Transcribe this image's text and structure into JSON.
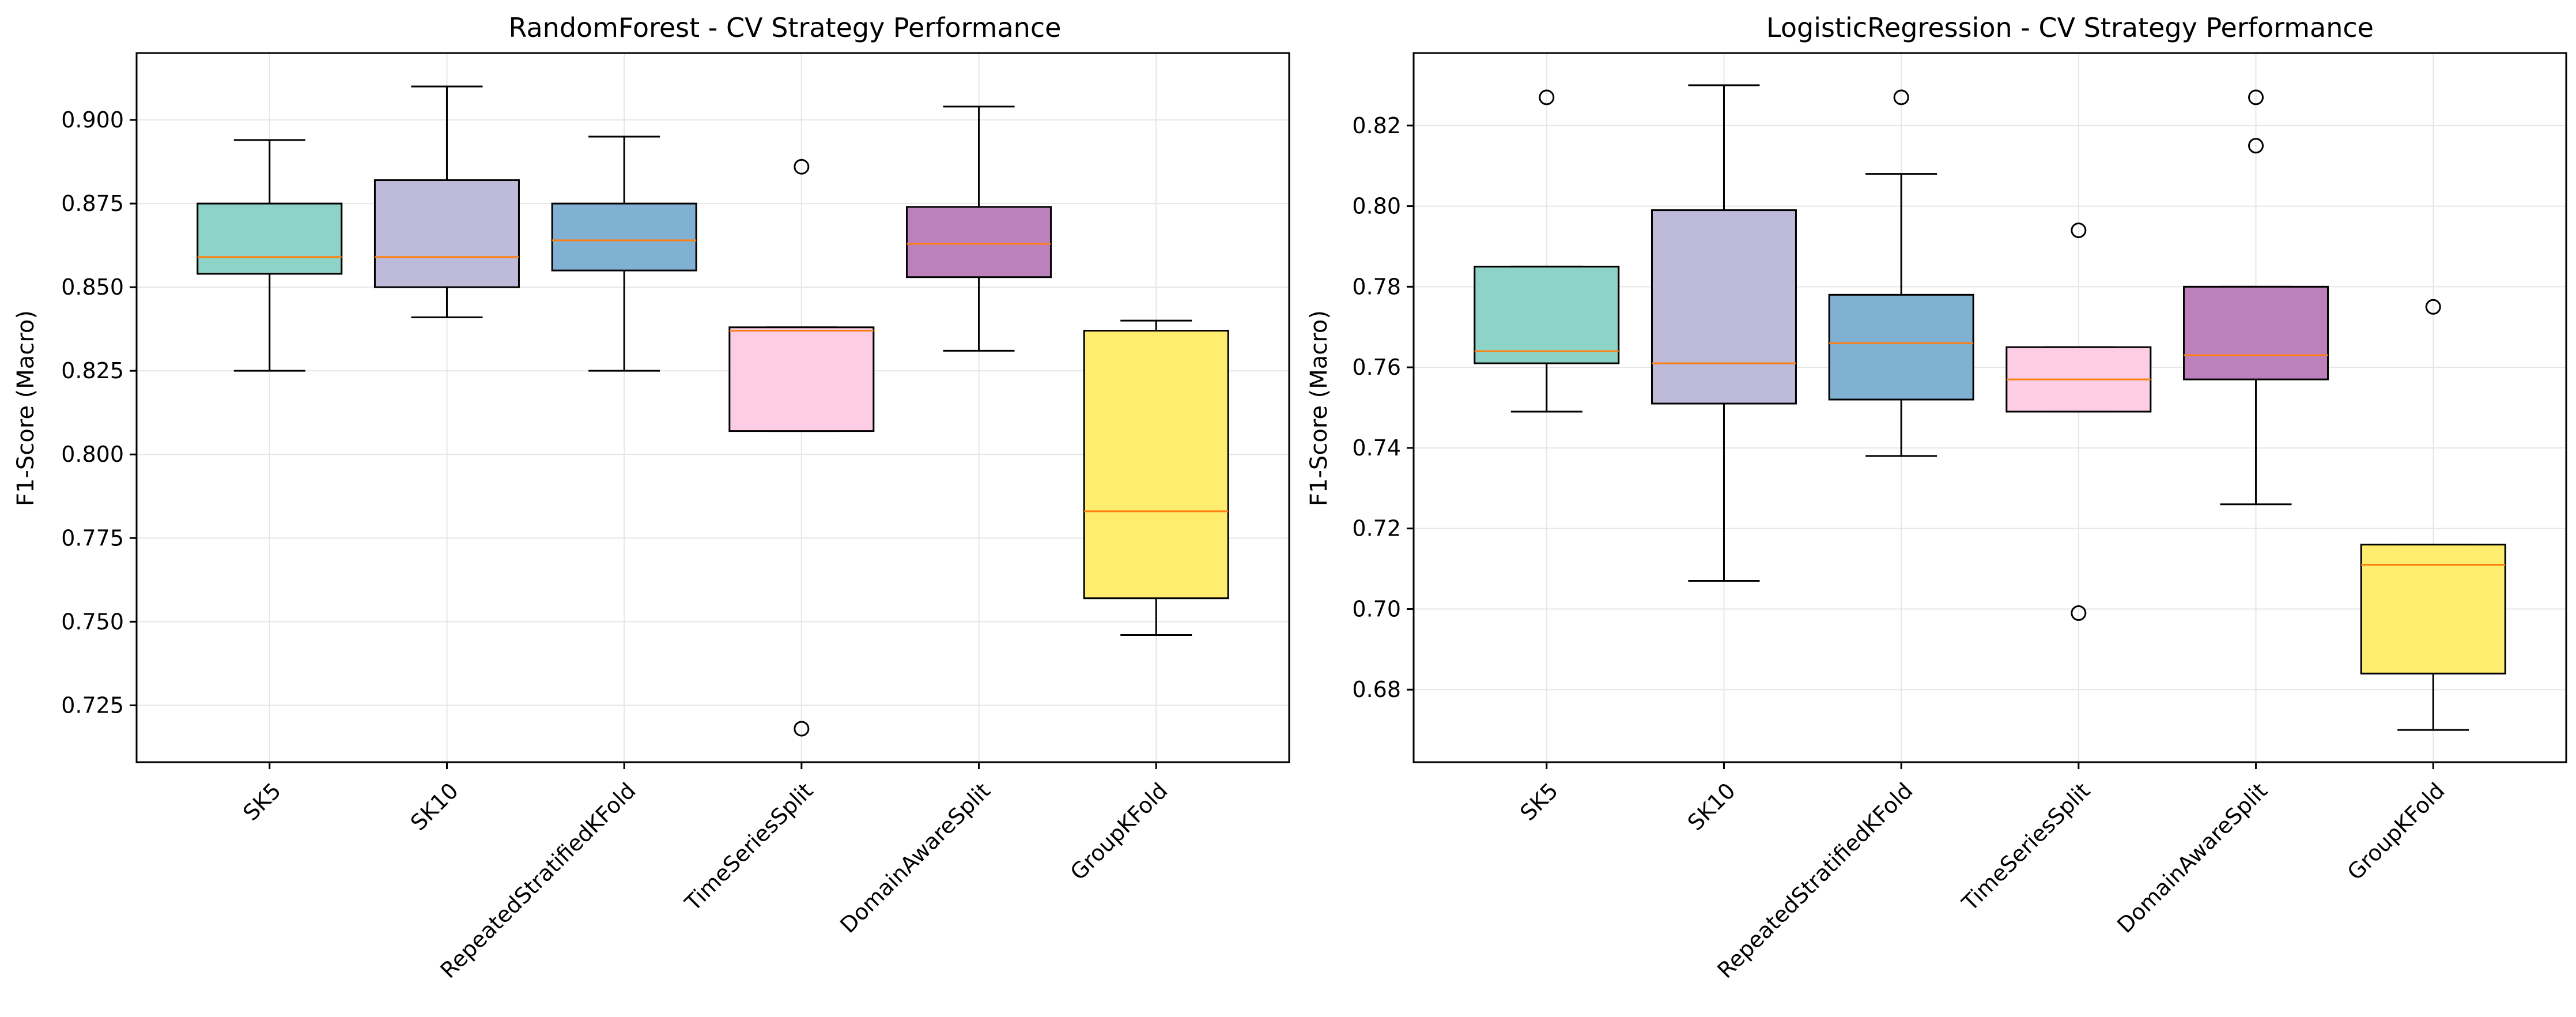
{
  "chart_data": [
    {
      "type": "box",
      "title": "RandomForest - CV Strategy Performance",
      "xlabel": "",
      "ylabel": "F1-Score (Macro)",
      "ylim": [
        0.708,
        0.92
      ],
      "yticks": [
        "0.725",
        "0.750",
        "0.775",
        "0.800",
        "0.825",
        "0.850",
        "0.875",
        "0.900"
      ],
      "grid": true,
      "categories": [
        "SK5",
        "SK10",
        "RepeatedStratifiedKFold",
        "TimeSeriesSplit",
        "DomainAwareSplit",
        "GroupKFold"
      ],
      "boxes": [
        {
          "category": "SK5",
          "whisker_low": 0.825,
          "q1": 0.854,
          "median": 0.859,
          "q3": 0.875,
          "whisker_high": 0.894,
          "outliers": [],
          "color": "#8dd3c7"
        },
        {
          "category": "SK10",
          "whisker_low": 0.841,
          "q1": 0.85,
          "median": 0.859,
          "q3": 0.882,
          "whisker_high": 0.91,
          "outliers": [],
          "color": "#bebada"
        },
        {
          "category": "RepeatedStratifiedKFold",
          "whisker_low": 0.825,
          "q1": 0.855,
          "median": 0.864,
          "q3": 0.875,
          "whisker_high": 0.895,
          "outliers": [],
          "color": "#80b1d3"
        },
        {
          "category": "TimeSeriesSplit",
          "whisker_low": 0.807,
          "q1": 0.807,
          "median": 0.837,
          "q3": 0.838,
          "whisker_high": 0.838,
          "outliers": [
            0.886,
            0.718
          ],
          "color": "#fccde5"
        },
        {
          "category": "DomainAwareSplit",
          "whisker_low": 0.831,
          "q1": 0.853,
          "median": 0.863,
          "q3": 0.874,
          "whisker_high": 0.904,
          "outliers": [],
          "color": "#bc80bd"
        },
        {
          "category": "GroupKFold",
          "whisker_low": 0.746,
          "q1": 0.757,
          "median": 0.783,
          "q3": 0.837,
          "whisker_high": 0.84,
          "outliers": [],
          "color": "#ffed6f"
        }
      ]
    },
    {
      "type": "box",
      "title": "LogisticRegression - CV Strategy Performance",
      "xlabel": "",
      "ylabel": "F1-Score (Macro)",
      "ylim": [
        0.662,
        0.838
      ],
      "yticks": [
        "0.68",
        "0.70",
        "0.72",
        "0.74",
        "0.76",
        "0.78",
        "0.80",
        "0.82"
      ],
      "grid": true,
      "categories": [
        "SK5",
        "SK10",
        "RepeatedStratifiedKFold",
        "TimeSeriesSplit",
        "DomainAwareSplit",
        "GroupKFold"
      ],
      "boxes": [
        {
          "category": "SK5",
          "whisker_low": 0.749,
          "q1": 0.761,
          "median": 0.764,
          "q3": 0.785,
          "whisker_high": 0.785,
          "outliers": [
            0.827
          ],
          "color": "#8dd3c7"
        },
        {
          "category": "SK10",
          "whisker_low": 0.707,
          "q1": 0.751,
          "median": 0.761,
          "q3": 0.799,
          "whisker_high": 0.83,
          "outliers": [],
          "color": "#bebada"
        },
        {
          "category": "RepeatedStratifiedKFold",
          "whisker_low": 0.738,
          "q1": 0.752,
          "median": 0.766,
          "q3": 0.778,
          "whisker_high": 0.808,
          "outliers": [
            0.827
          ],
          "color": "#80b1d3"
        },
        {
          "category": "TimeSeriesSplit",
          "whisker_low": 0.749,
          "q1": 0.749,
          "median": 0.757,
          "q3": 0.765,
          "whisker_high": 0.765,
          "outliers": [
            0.794,
            0.699
          ],
          "color": "#fccde5"
        },
        {
          "category": "DomainAwareSplit",
          "whisker_low": 0.726,
          "q1": 0.757,
          "median": 0.763,
          "q3": 0.78,
          "whisker_high": 0.78,
          "outliers": [
            0.827,
            0.815
          ],
          "color": "#bc80bd"
        },
        {
          "category": "GroupKFold",
          "whisker_low": 0.67,
          "q1": 0.684,
          "median": 0.711,
          "q3": 0.716,
          "whisker_high": 0.716,
          "outliers": [
            0.775
          ],
          "color": "#ffed6f"
        }
      ]
    }
  ],
  "colors": {
    "median_line": "#ff7f0e",
    "box_edge": "#000000",
    "grid": "#e6e6e6"
  }
}
